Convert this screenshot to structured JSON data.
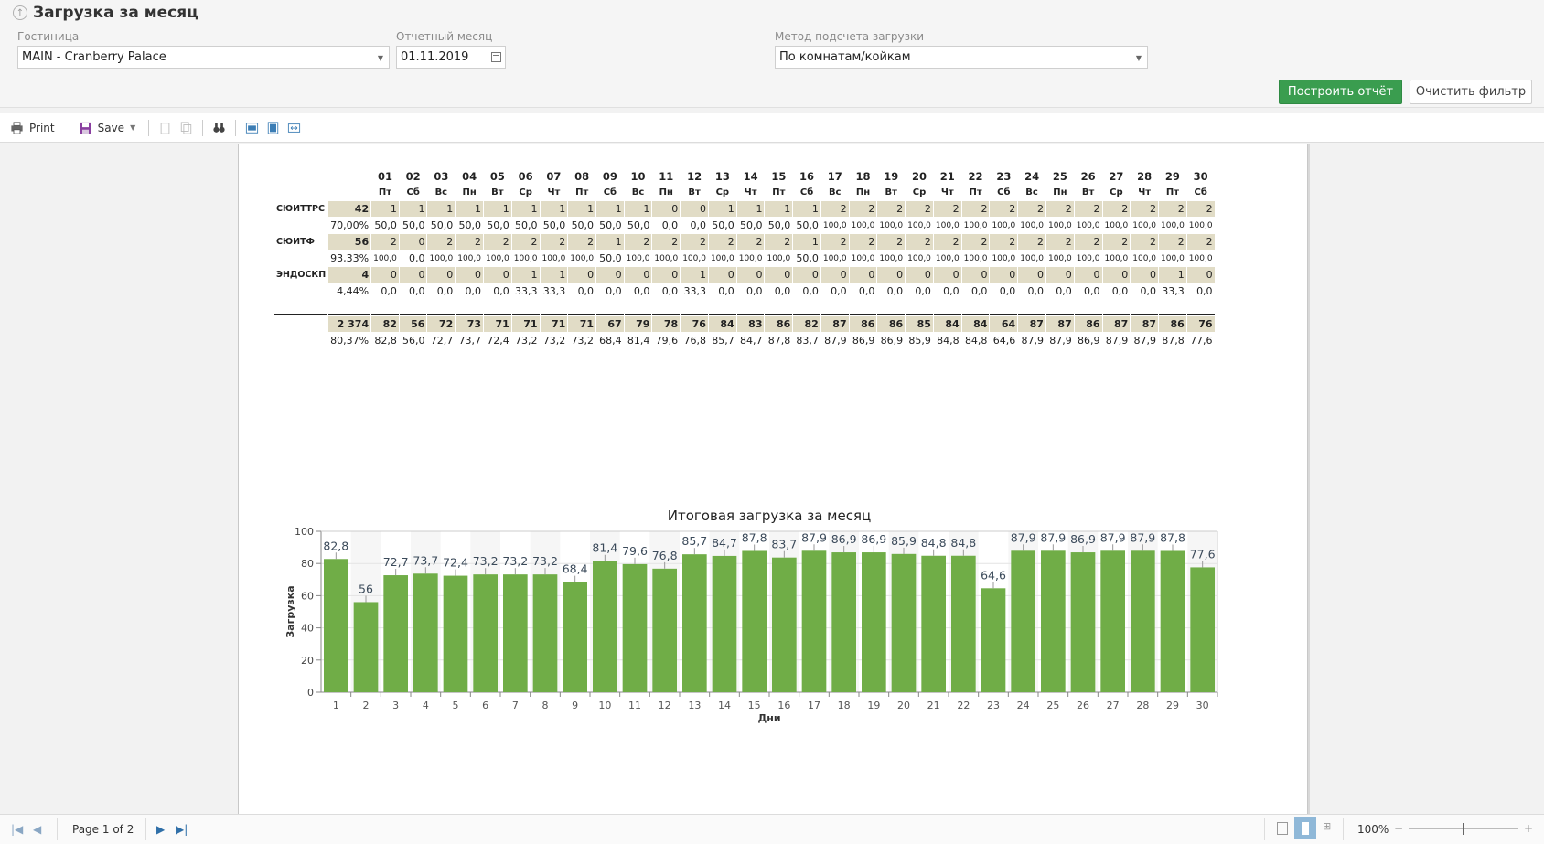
{
  "header": {
    "title": "Загрузка за месяц",
    "hotel_label": "Гостиница",
    "hotel_value": "MAIN - Cranberry Palace",
    "month_label": "Отчетный месяц",
    "month_value": "01.11.2019",
    "method_label": "Метод подсчета загрузки",
    "method_value": "По комнатам/койкам",
    "build_button": "Построить отчёт",
    "clear_button": "Очистить фильтр"
  },
  "toolbar": {
    "print_label": "Print",
    "save_label": "Save"
  },
  "report": {
    "days": [
      "01",
      "02",
      "03",
      "04",
      "05",
      "06",
      "07",
      "08",
      "09",
      "10",
      "11",
      "12",
      "13",
      "14",
      "15",
      "16",
      "17",
      "18",
      "19",
      "20",
      "21",
      "22",
      "23",
      "24",
      "25",
      "26",
      "27",
      "28",
      "29",
      "30"
    ],
    "weekdays": [
      "Пт",
      "Сб",
      "Вс",
      "Пн",
      "Вт",
      "Ср",
      "Чт",
      "Пт",
      "Сб",
      "Вс",
      "Пн",
      "Вт",
      "Ср",
      "Чт",
      "Пт",
      "Сб",
      "Вс",
      "Пн",
      "Вт",
      "Ср",
      "Чт",
      "Пт",
      "Сб",
      "Вс",
      "Пн",
      "Вт",
      "Ср",
      "Чт",
      "Пт",
      "Сб"
    ],
    "rows": [
      {
        "name": "СЮИТТРС",
        "total": "42",
        "pct": "70,00%",
        "counts": [
          "1",
          "1",
          "1",
          "1",
          "1",
          "1",
          "1",
          "1",
          "1",
          "1",
          "0",
          "0",
          "1",
          "1",
          "1",
          "1",
          "2",
          "2",
          "2",
          "2",
          "2",
          "2",
          "2",
          "2",
          "2",
          "2",
          "2",
          "2",
          "2",
          "2"
        ],
        "percents": [
          "50,0",
          "50,0",
          "50,0",
          "50,0",
          "50,0",
          "50,0",
          "50,0",
          "50,0",
          "50,0",
          "50,0",
          "0,0",
          "0,0",
          "50,0",
          "50,0",
          "50,0",
          "50,0",
          "100,0",
          "100,0",
          "100,0",
          "100,0",
          "100,0",
          "100,0",
          "100,0",
          "100,0",
          "100,0",
          "100,0",
          "100,0",
          "100,0",
          "100,0",
          "100,0"
        ]
      },
      {
        "name": "СЮИТФ",
        "total": "56",
        "pct": "93,33%",
        "counts": [
          "2",
          "0",
          "2",
          "2",
          "2",
          "2",
          "2",
          "2",
          "1",
          "2",
          "2",
          "2",
          "2",
          "2",
          "2",
          "1",
          "2",
          "2",
          "2",
          "2",
          "2",
          "2",
          "2",
          "2",
          "2",
          "2",
          "2",
          "2",
          "2",
          "2"
        ],
        "percents": [
          "100,0",
          "0,0",
          "100,0",
          "100,0",
          "100,0",
          "100,0",
          "100,0",
          "100,0",
          "50,0",
          "100,0",
          "100,0",
          "100,0",
          "100,0",
          "100,0",
          "100,0",
          "50,0",
          "100,0",
          "100,0",
          "100,0",
          "100,0",
          "100,0",
          "100,0",
          "100,0",
          "100,0",
          "100,0",
          "100,0",
          "100,0",
          "100,0",
          "100,0",
          "100,0"
        ]
      },
      {
        "name": "ЭНДОСКП",
        "total": "4",
        "pct": "4,44%",
        "counts": [
          "0",
          "0",
          "0",
          "0",
          "0",
          "1",
          "1",
          "0",
          "0",
          "0",
          "0",
          "1",
          "0",
          "0",
          "0",
          "0",
          "0",
          "0",
          "0",
          "0",
          "0",
          "0",
          "0",
          "0",
          "0",
          "0",
          "0",
          "0",
          "1",
          "0"
        ],
        "percents": [
          "0,0",
          "0,0",
          "0,0",
          "0,0",
          "0,0",
          "33,3",
          "33,3",
          "0,0",
          "0,0",
          "0,0",
          "0,0",
          "33,3",
          "0,0",
          "0,0",
          "0,0",
          "0,0",
          "0,0",
          "0,0",
          "0,0",
          "0,0",
          "0,0",
          "0,0",
          "0,0",
          "0,0",
          "0,0",
          "0,0",
          "0,0",
          "0,0",
          "33,3",
          "0,0"
        ]
      }
    ],
    "totals": {
      "total": "2 374",
      "pct": "80,37%",
      "counts": [
        "82",
        "56",
        "72",
        "73",
        "71",
        "71",
        "71",
        "71",
        "67",
        "79",
        "78",
        "76",
        "84",
        "83",
        "86",
        "82",
        "87",
        "86",
        "86",
        "85",
        "84",
        "84",
        "64",
        "87",
        "87",
        "86",
        "87",
        "87",
        "86",
        "76"
      ],
      "percents": [
        "82,8",
        "56,0",
        "72,7",
        "73,7",
        "72,4",
        "73,2",
        "73,2",
        "73,2",
        "68,4",
        "81,4",
        "79,6",
        "76,8",
        "85,7",
        "84,7",
        "87,8",
        "83,7",
        "87,9",
        "86,9",
        "86,9",
        "85,9",
        "84,8",
        "84,8",
        "64,6",
        "87,9",
        "87,9",
        "86,9",
        "87,9",
        "87,9",
        "87,8",
        "77,6"
      ]
    }
  },
  "chart_data": {
    "type": "bar",
    "title": "Итоговая загрузка за месяц",
    "xlabel": "Дни",
    "ylabel": "Загрузка",
    "ylim": [
      0,
      100
    ],
    "yticks": [
      0,
      20,
      40,
      60,
      80,
      100
    ],
    "categories": [
      "1",
      "2",
      "3",
      "4",
      "5",
      "6",
      "7",
      "8",
      "9",
      "10",
      "11",
      "12",
      "13",
      "14",
      "15",
      "16",
      "17",
      "18",
      "19",
      "20",
      "21",
      "22",
      "23",
      "24",
      "25",
      "26",
      "27",
      "28",
      "29",
      "30"
    ],
    "values": [
      82.8,
      56,
      72.7,
      73.7,
      72.4,
      73.2,
      73.2,
      73.2,
      68.4,
      81.4,
      79.6,
      76.8,
      85.7,
      84.7,
      87.8,
      83.7,
      87.9,
      86.9,
      86.9,
      85.9,
      84.8,
      84.8,
      64.6,
      87.9,
      87.9,
      86.9,
      87.9,
      87.9,
      87.8,
      77.6
    ],
    "labels": [
      "82,8",
      "56",
      "72,7",
      "73,7",
      "72,4",
      "73,2",
      "73,2",
      "73,2",
      "68,4",
      "81,4",
      "79,6",
      "76,8",
      "85,7",
      "84,7",
      "87,8",
      "83,7",
      "87,9",
      "86,9",
      "86,9",
      "85,9",
      "84,8",
      "84,8",
      "64,6",
      "87,9",
      "87,9",
      "86,9",
      "87,9",
      "87,9",
      "87,8",
      "77,6"
    ],
    "bar_color": "#70ad47",
    "grid": true
  },
  "footer": {
    "page_label": "Page 1 of 2",
    "zoom_label": "100%"
  }
}
